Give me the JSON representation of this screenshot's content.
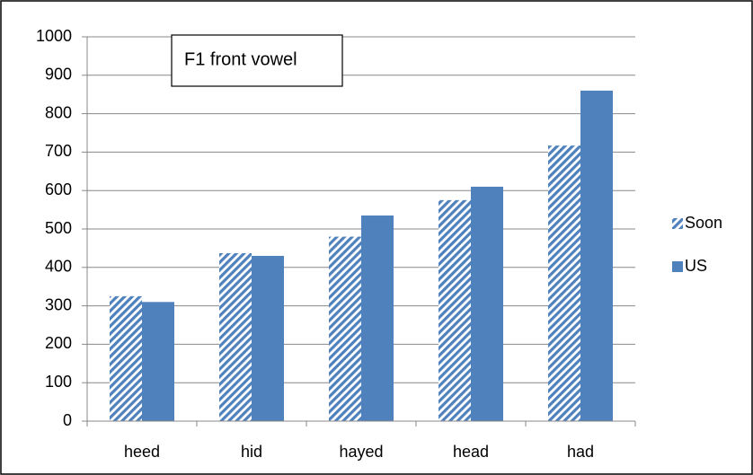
{
  "chart_data": {
    "type": "bar",
    "annotation": "F1 front vowel",
    "categories": [
      "heed",
      "hid",
      "hayed",
      "head",
      "had"
    ],
    "series": [
      {
        "name": "Soon",
        "color": "#4f81bd",
        "pattern": "diagonal",
        "values": [
          325,
          437,
          480,
          575,
          717
        ]
      },
      {
        "name": "US",
        "color": "#4f81bd",
        "values": [
          310,
          430,
          535,
          610,
          860
        ]
      }
    ],
    "ylim": [
      0,
      1000
    ],
    "yticks": [
      0,
      100,
      200,
      300,
      400,
      500,
      600,
      700,
      800,
      900,
      1000
    ],
    "grid": true,
    "legend": "right"
  }
}
